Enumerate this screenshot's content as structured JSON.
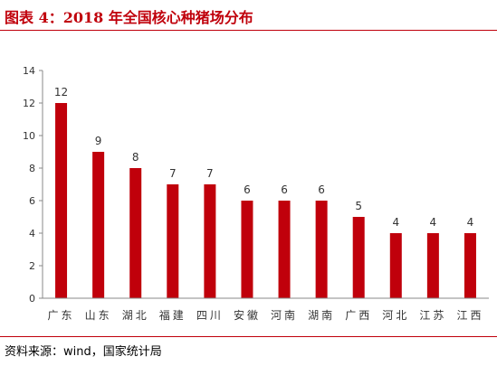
{
  "header": {
    "title": "图表 4：2018 年全国核心种猪场分布"
  },
  "footer": {
    "source": "资料来源：wind，国家统计局"
  },
  "colors": {
    "bar": "#c0000b",
    "rule": "#c0000b",
    "axis": "#888888",
    "text": "#333333"
  },
  "chart_data": {
    "type": "bar",
    "title": "",
    "xlabel": "",
    "ylabel": "",
    "categories": [
      "广东",
      "山东",
      "湖北",
      "福建",
      "四川",
      "安徽",
      "河南",
      "湖南",
      "广西",
      "河北",
      "江苏",
      "江西"
    ],
    "values": [
      12,
      9,
      8,
      7,
      7,
      6,
      6,
      6,
      5,
      4,
      4,
      4
    ],
    "ylim": [
      0,
      14
    ],
    "yticks": [
      0,
      2,
      4,
      6,
      8,
      10,
      12,
      14
    ],
    "grid": false,
    "legend": "none",
    "data_labels": true
  }
}
